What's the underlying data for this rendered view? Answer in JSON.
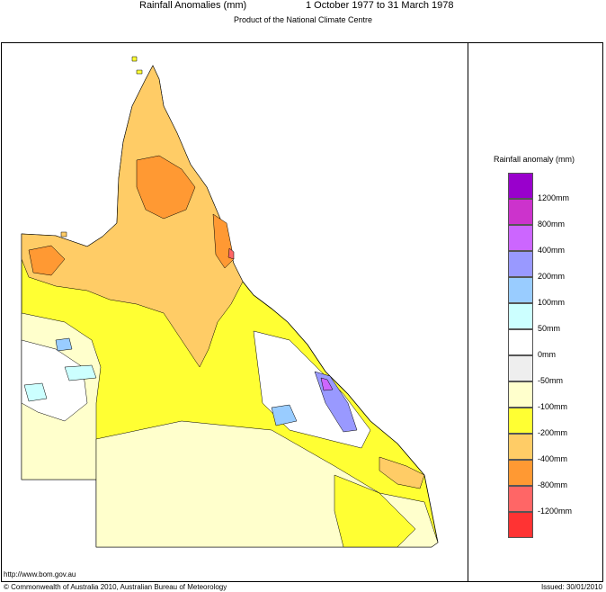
{
  "header": {
    "title": "Rainfall Anomalies (mm)",
    "period": "1 October 1977 to 31 March 1978",
    "subtitle": "Product of the National Climate Centre"
  },
  "legend": {
    "title": "Rainfall anomaly (mm)",
    "bins": [
      {
        "label": "",
        "color": "#9900cc"
      },
      {
        "label": "1200mm",
        "color": "#cc33cc"
      },
      {
        "label": "800mm",
        "color": "#cc66ff"
      },
      {
        "label": "400mm",
        "color": "#9999ff"
      },
      {
        "label": "200mm",
        "color": "#99ccff"
      },
      {
        "label": "100mm",
        "color": "#ccffff"
      },
      {
        "label": "50mm",
        "color": "#ffffff"
      },
      {
        "label": "0mm",
        "color": "#eeeeee"
      },
      {
        "label": "-50mm",
        "color": "#ffffcc"
      },
      {
        "label": "-100mm",
        "color": "#ffff33"
      },
      {
        "label": "-200mm",
        "color": "#ffcc66"
      },
      {
        "label": "-400mm",
        "color": "#ff9933"
      },
      {
        "label": "-800mm",
        "color": "#ff6666"
      },
      {
        "label": "-1200mm",
        "color": "#ff3333"
      }
    ]
  },
  "footer": {
    "url": "http://www.bom.gov.au",
    "copyright": "© Commonwealth of Australia 2010, Australian Bureau of Meteorology",
    "issued": "Issued: 30/01/2010"
  }
}
